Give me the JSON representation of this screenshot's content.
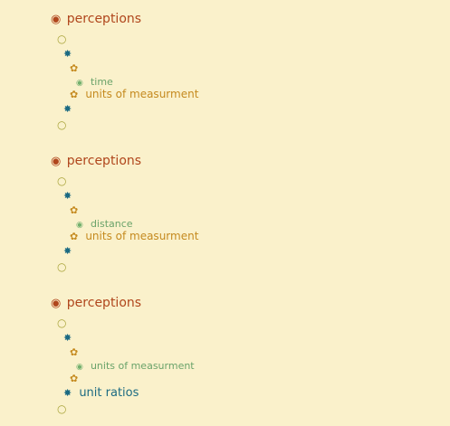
{
  "icons": {
    "level1": "◉",
    "level2": "○",
    "level3": "✸",
    "level4": "✿",
    "level5": "◉"
  },
  "blocks": [
    {
      "title": "perceptions",
      "leaf": "time",
      "level4_label": "units of measurment",
      "level3_label": ""
    },
    {
      "title": "perceptions",
      "leaf": "distance",
      "level4_label": "units of measurment",
      "level3_label": ""
    },
    {
      "title": "perceptions",
      "leaf": "units of measurment",
      "level4_label": "",
      "level3_label": "unit ratios"
    }
  ]
}
